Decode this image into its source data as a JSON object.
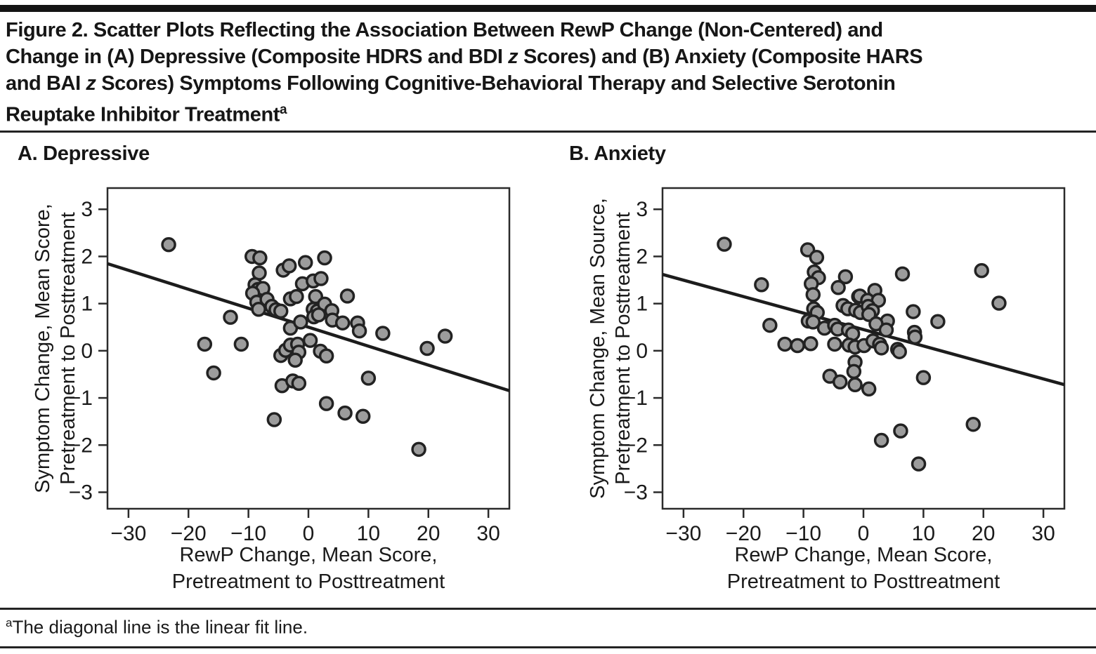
{
  "figure": {
    "title_lines": [
      "Figure 2. Scatter Plots Reflecting the Association Between RewP Change (Non-Centered) and",
      "Change in (A) Depressive (Composite HDRS and BDI z Scores) and (B) Anxiety (Composite HARS",
      "and BAI z Scores) Symptoms Following Cognitive-Behavioral Therapy and Selective Serotonin",
      "Reuptake Inhibitor Treatment"
    ],
    "title_superscript": "a",
    "footnote": {
      "marker": "a",
      "text": "The diagonal line is the linear fit line."
    }
  },
  "style": {
    "dot_fill": "#9c9c9c",
    "dot_stroke": "#222222",
    "fit_line_color": "#1c1c1c",
    "box_stroke": "#2b2b2b",
    "text_color": "#1a1a1a"
  },
  "chart_data": [
    {
      "type": "scatter",
      "panel_label": "A. Depressive",
      "xlabel_lines": [
        "RewP Change, Mean Score,",
        "Pretreatment to Posttreatment"
      ],
      "ylabel_lines": [
        "Symptom Change, Mean Score,",
        "Pretreatment to Posttreatment"
      ],
      "xlim": [
        -33.5,
        33.5
      ],
      "ylim": [
        -3.35,
        3.45
      ],
      "xticks": [
        -30,
        -20,
        -10,
        0,
        10,
        20,
        30
      ],
      "yticks": [
        3,
        2,
        1,
        0,
        -1,
        -2,
        -3
      ],
      "grid": false,
      "fit_line": {
        "intercept": 0.5,
        "slope": -0.0402
      },
      "points": [
        [
          -23.3,
          2.25
        ],
        [
          -9.4,
          2.0
        ],
        [
          -8.1,
          1.97
        ],
        [
          -8.2,
          1.65
        ],
        [
          -4.2,
          1.71
        ],
        [
          -3.2,
          1.8
        ],
        [
          -0.5,
          1.87
        ],
        [
          2.7,
          1.97
        ],
        [
          -8.9,
          1.4
        ],
        [
          -8.4,
          1.3
        ],
        [
          -7.6,
          1.32
        ],
        [
          -9.3,
          1.22
        ],
        [
          -8.6,
          1.03
        ],
        [
          -8.3,
          0.88
        ],
        [
          -6.9,
          1.09
        ],
        [
          -6.1,
          0.94
        ],
        [
          -5.4,
          0.87
        ],
        [
          -4.6,
          0.84
        ],
        [
          -3.0,
          1.1
        ],
        [
          -2.0,
          1.15
        ],
        [
          -1.0,
          1.42
        ],
        [
          0.8,
          1.48
        ],
        [
          2.1,
          1.53
        ],
        [
          1.2,
          1.15
        ],
        [
          6.5,
          1.16
        ],
        [
          0.8,
          0.88
        ],
        [
          1.5,
          0.84
        ],
        [
          2.7,
          0.99
        ],
        [
          3.9,
          0.85
        ],
        [
          0.9,
          0.72
        ],
        [
          1.7,
          0.76
        ],
        [
          4.0,
          0.65
        ],
        [
          5.7,
          0.59
        ],
        [
          8.2,
          0.59
        ],
        [
          8.5,
          0.42
        ],
        [
          12.4,
          0.37
        ],
        [
          22.8,
          0.31
        ],
        [
          -13.0,
          0.71
        ],
        [
          -3.0,
          0.48
        ],
        [
          -1.3,
          0.61
        ],
        [
          -17.3,
          0.14
        ],
        [
          -11.2,
          0.14
        ],
        [
          -4.6,
          -0.1
        ],
        [
          -3.8,
          0.01
        ],
        [
          -3.0,
          0.12
        ],
        [
          -1.8,
          0.14
        ],
        [
          -1.6,
          -0.03
        ],
        [
          -2.2,
          -0.2
        ],
        [
          0.3,
          0.22
        ],
        [
          2.0,
          -0.01
        ],
        [
          -15.8,
          -0.47
        ],
        [
          -4.4,
          -0.74
        ],
        [
          -2.6,
          -0.64
        ],
        [
          -1.6,
          -0.69
        ],
        [
          -5.7,
          -1.46
        ],
        [
          3.0,
          -0.11
        ],
        [
          10.0,
          -0.58
        ],
        [
          3.0,
          -1.12
        ],
        [
          6.1,
          -1.32
        ],
        [
          9.1,
          -1.39
        ],
        [
          18.4,
          -2.09
        ],
        [
          19.8,
          0.05
        ]
      ]
    },
    {
      "type": "scatter",
      "panel_label": "B. Anxiety",
      "xlabel_lines": [
        "RewP Change, Mean Score,",
        "Pretreatment to Posttreatment"
      ],
      "ylabel_lines": [
        "Symptom Change, Mean Source,",
        "Pretreatment to Posttreatment"
      ],
      "xlim": [
        -33.5,
        33.5
      ],
      "ylim": [
        -3.35,
        3.45
      ],
      "xticks": [
        -30,
        -20,
        -10,
        0,
        10,
        20,
        30
      ],
      "yticks": [
        3,
        2,
        1,
        0,
        -1,
        -2,
        -3
      ],
      "grid": false,
      "fit_line": {
        "intercept": 0.45,
        "slope": -0.0349
      },
      "points": [
        [
          -23.2,
          2.26
        ],
        [
          -17.0,
          1.4
        ],
        [
          -9.3,
          2.14
        ],
        [
          -7.8,
          1.98
        ],
        [
          -8.2,
          1.67
        ],
        [
          -7.5,
          1.55
        ],
        [
          -8.7,
          1.42
        ],
        [
          -8.4,
          1.19
        ],
        [
          -3.0,
          1.57
        ],
        [
          -4.2,
          1.34
        ],
        [
          -0.8,
          1.15
        ],
        [
          -8.3,
          0.89
        ],
        [
          -7.7,
          0.81
        ],
        [
          -9.2,
          0.63
        ],
        [
          -8.4,
          0.61
        ],
        [
          -6.5,
          0.48
        ],
        [
          -4.8,
          0.54
        ],
        [
          -4.3,
          0.46
        ],
        [
          -2.5,
          0.44
        ],
        [
          -1.8,
          0.36
        ],
        [
          -3.4,
          0.96
        ],
        [
          -2.6,
          0.89
        ],
        [
          -1.3,
          0.86
        ],
        [
          -0.5,
          0.81
        ],
        [
          -15.6,
          0.54
        ],
        [
          -13.1,
          0.14
        ],
        [
          -11.0,
          0.11
        ],
        [
          -8.8,
          0.15
        ],
        [
          -4.8,
          0.14
        ],
        [
          -2.4,
          0.12
        ],
        [
          -1.4,
          0.08
        ],
        [
          0.1,
          0.11
        ],
        [
          19.7,
          1.7
        ],
        [
          22.6,
          1.01
        ],
        [
          6.5,
          1.63
        ],
        [
          1.9,
          1.28
        ],
        [
          -0.6,
          1.16
        ],
        [
          0.7,
          1.07
        ],
        [
          2.5,
          1.07
        ],
        [
          0.8,
          0.94
        ],
        [
          1.5,
          0.85
        ],
        [
          0.9,
          0.77
        ],
        [
          8.3,
          0.83
        ],
        [
          12.4,
          0.62
        ],
        [
          4.0,
          0.63
        ],
        [
          2.1,
          0.57
        ],
        [
          3.8,
          0.44
        ],
        [
          8.5,
          0.39
        ],
        [
          8.6,
          0.29
        ],
        [
          1.6,
          0.21
        ],
        [
          2.7,
          0.14
        ],
        [
          3.0,
          0.06
        ],
        [
          5.7,
          0.03
        ],
        [
          6.0,
          -0.02
        ],
        [
          -1.4,
          -0.24
        ],
        [
          -1.6,
          -0.44
        ],
        [
          -5.6,
          -0.54
        ],
        [
          -3.9,
          -0.66
        ],
        [
          -1.4,
          -0.72
        ],
        [
          0.9,
          -0.81
        ],
        [
          10.0,
          -0.57
        ],
        [
          18.3,
          -1.56
        ],
        [
          6.2,
          -1.7
        ],
        [
          3.0,
          -1.9
        ],
        [
          9.2,
          -2.4
        ]
      ]
    }
  ]
}
